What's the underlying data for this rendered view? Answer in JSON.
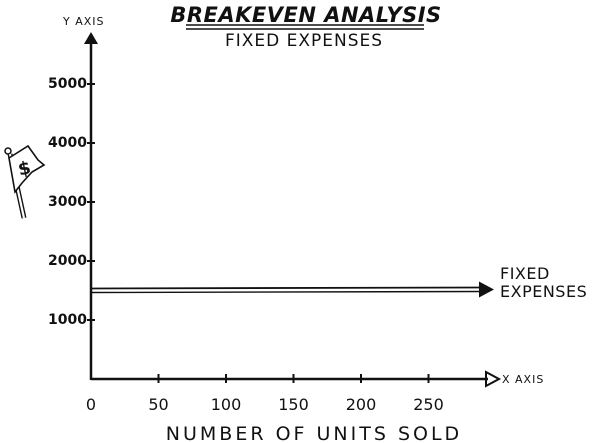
{
  "chart_data": {
    "type": "line",
    "title": "BREAKEVEN ANALYSIS",
    "subtitle": "FIXED EXPENSES",
    "xlabel": "NUMBER OF UNITS SOLD",
    "x_axis_tag": "X AXIS",
    "y_axis_tag": "Y AXIS",
    "x_ticks": [
      "0",
      "50",
      "100",
      "150",
      "200",
      "250"
    ],
    "x_tick_values": [
      0,
      50,
      100,
      150,
      200,
      250
    ],
    "y_ticks": [
      "1000",
      "2000",
      "3000",
      "4000",
      "5000"
    ],
    "y_tick_values": [
      1000,
      2000,
      3000,
      4000,
      5000
    ],
    "xlim": [
      0,
      300
    ],
    "ylim": [
      0,
      5500
    ],
    "grid": false,
    "series": [
      {
        "name": "FIXED EXPENSES",
        "x": [
          0,
          300
        ],
        "y": [
          1500,
          1500
        ]
      }
    ],
    "series_label_lines": [
      "FIXED",
      "EXPENSES"
    ],
    "icon": "dollar-flag-icon",
    "flag_glyph": "$"
  }
}
